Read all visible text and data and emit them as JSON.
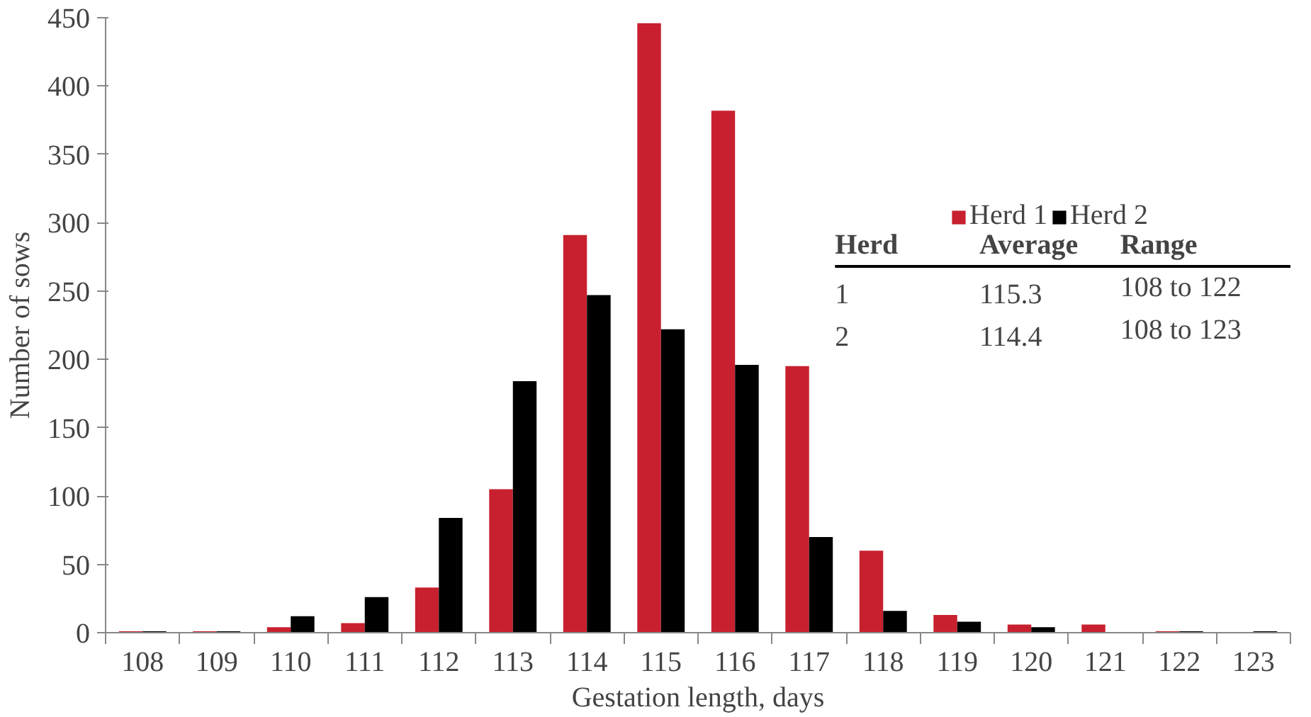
{
  "chart_data": {
    "type": "bar",
    "xlabel": "Gestation length, days",
    "ylabel": "Number of sows",
    "categories": [
      "108",
      "109",
      "110",
      "111",
      "112",
      "113",
      "114",
      "115",
      "116",
      "117",
      "118",
      "119",
      "120",
      "121",
      "122",
      "123"
    ],
    "series": [
      {
        "name": "Herd 1",
        "color": "#c8202f",
        "values": [
          1,
          1,
          4,
          7,
          33,
          105,
          291,
          446,
          382,
          195,
          60,
          13,
          6,
          6,
          1,
          0
        ]
      },
      {
        "name": "Herd 2",
        "color": "#000000",
        "values": [
          1,
          1,
          12,
          26,
          84,
          184,
          247,
          222,
          196,
          70,
          16,
          8,
          4,
          0,
          1,
          1
        ]
      }
    ],
    "ylim": [
      0,
      450
    ],
    "yticks": [
      0,
      50,
      100,
      150,
      200,
      250,
      300,
      350,
      400,
      450
    ],
    "grid": false,
    "legend": "top right",
    "annotations": [
      "Herd",
      "Average",
      "Range",
      "1",
      "115.3",
      "108 to 122",
      "2",
      "114.4",
      "108 to 123"
    ]
  }
}
